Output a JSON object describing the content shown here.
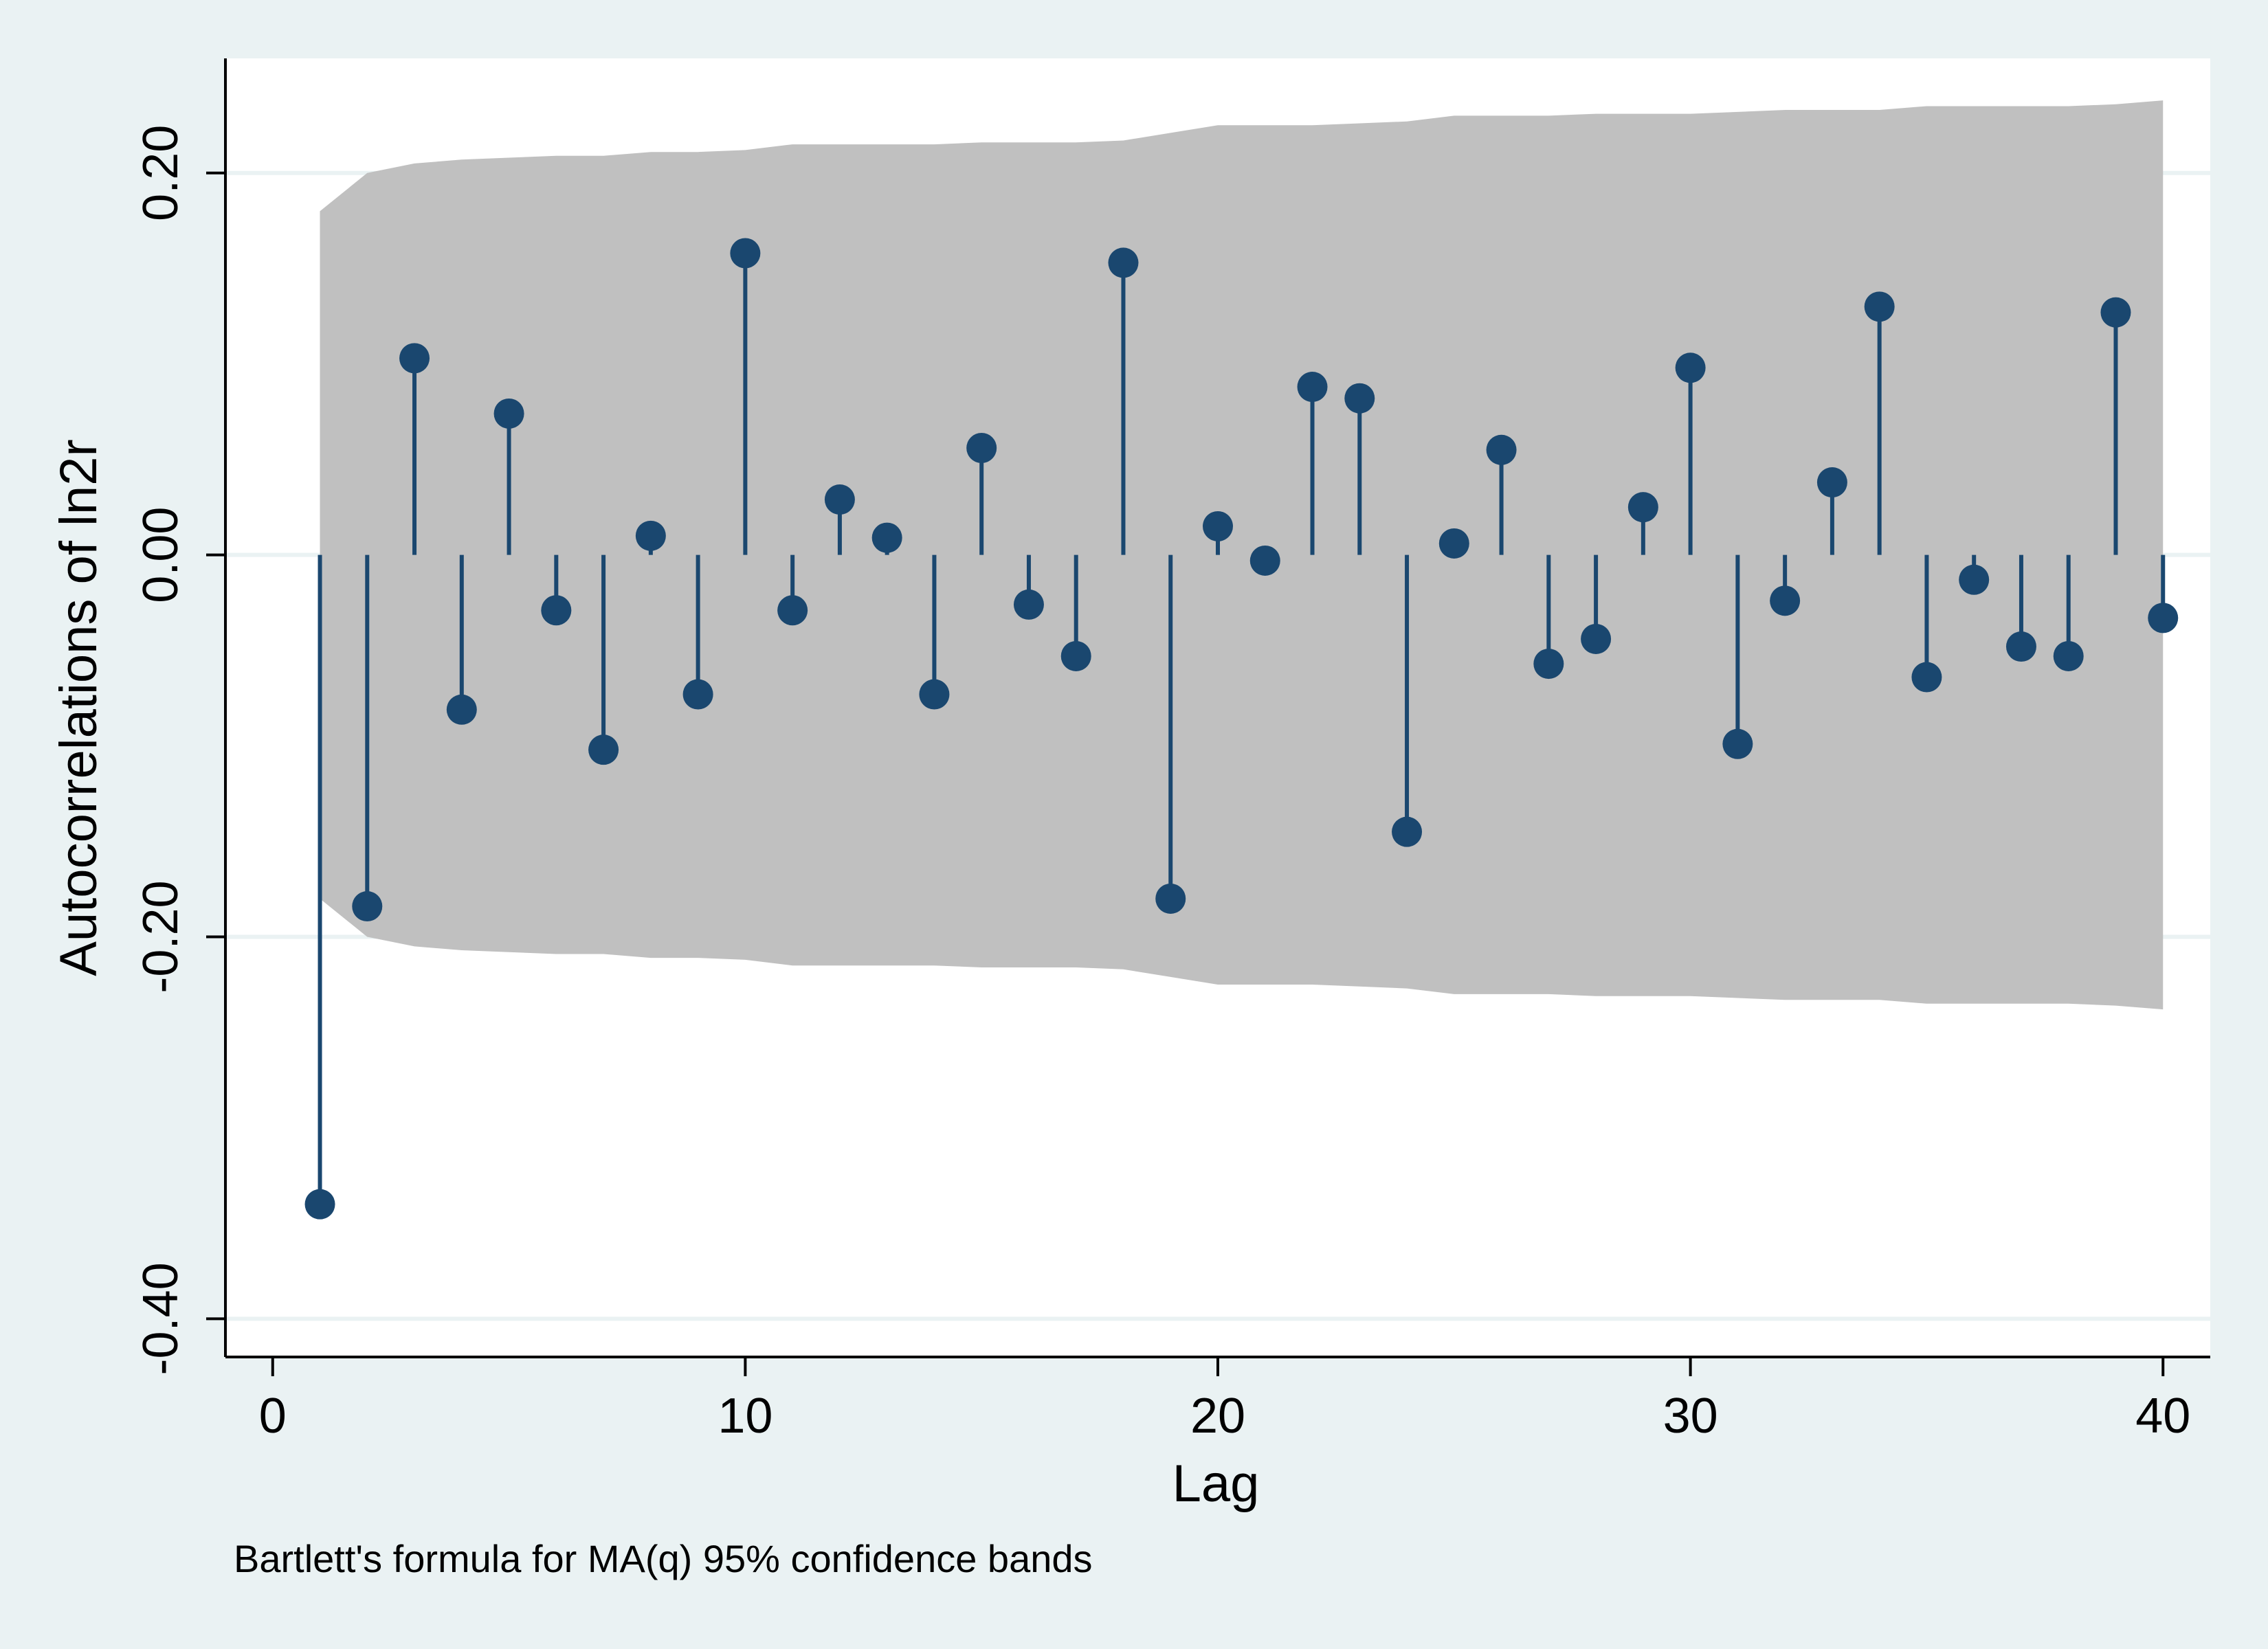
{
  "chart_data": {
    "type": "scatter",
    "title": "",
    "xlabel": "Lag",
    "ylabel": "Autocorrelations of ln2r",
    "note": "Bartlett's formula for MA(q) 95% confidence bands",
    "xlim": [
      -1,
      41
    ],
    "ylim": [
      -0.42,
      0.26
    ],
    "xticks": [
      0,
      10,
      20,
      30,
      40
    ],
    "xtick_labels": [
      "0",
      "10",
      "20",
      "30",
      "40"
    ],
    "yticks": [
      -0.4,
      -0.2,
      0.0,
      0.2
    ],
    "ytick_labels": [
      "-0.40",
      "-0.20",
      "0.00",
      "0.20"
    ],
    "grid": true,
    "legend": "none",
    "colors": {
      "marker": "#1a476f",
      "band": "#c0c0c0",
      "plot_bg": "#ffffff",
      "outer_bg": "#eaf2f3",
      "grid": "#eaf2f3"
    },
    "series": [
      {
        "style": "spike",
        "x": [
          1,
          2,
          3,
          4,
          5,
          6,
          7,
          8,
          9,
          10,
          11,
          12,
          13,
          14,
          15,
          16,
          17,
          18,
          19,
          20,
          21,
          22,
          23,
          24,
          25,
          26,
          27,
          28,
          29,
          30,
          31,
          32,
          33,
          34,
          35,
          36,
          37,
          38,
          39,
          40
        ],
        "values": [
          -0.34,
          -0.184,
          0.103,
          -0.081,
          0.074,
          -0.029,
          -0.102,
          0.01,
          -0.073,
          0.158,
          -0.029,
          0.029,
          0.009,
          -0.073,
          0.056,
          -0.026,
          -0.053,
          0.153,
          -0.18,
          0.015,
          -0.003,
          0.088,
          0.082,
          -0.145,
          0.006,
          0.055,
          -0.057,
          -0.044,
          0.025,
          0.098,
          -0.099,
          -0.024,
          0.038,
          0.13,
          -0.064,
          -0.013,
          -0.048,
          -0.053,
          0.127,
          -0.033
        ]
      }
    ],
    "confidence_band": {
      "x": [
        1,
        2,
        3,
        4,
        5,
        6,
        7,
        8,
        9,
        10,
        11,
        12,
        13,
        14,
        15,
        16,
        17,
        18,
        19,
        20,
        21,
        22,
        23,
        24,
        25,
        26,
        27,
        28,
        29,
        30,
        31,
        32,
        33,
        34,
        35,
        36,
        37,
        38,
        39,
        40
      ],
      "upper": [
        0.18,
        0.2,
        0.205,
        0.207,
        0.208,
        0.209,
        0.209,
        0.211,
        0.211,
        0.212,
        0.215,
        0.215,
        0.215,
        0.215,
        0.216,
        0.216,
        0.216,
        0.217,
        0.221,
        0.225,
        0.225,
        0.225,
        0.226,
        0.227,
        0.23,
        0.23,
        0.23,
        0.231,
        0.231,
        0.231,
        0.232,
        0.233,
        0.233,
        0.233,
        0.235,
        0.235,
        0.235,
        0.235,
        0.236,
        0.238
      ],
      "lower": [
        -0.18,
        -0.2,
        -0.205,
        -0.207,
        -0.208,
        -0.209,
        -0.209,
        -0.211,
        -0.211,
        -0.212,
        -0.215,
        -0.215,
        -0.215,
        -0.215,
        -0.216,
        -0.216,
        -0.216,
        -0.217,
        -0.221,
        -0.225,
        -0.225,
        -0.225,
        -0.226,
        -0.227,
        -0.23,
        -0.23,
        -0.23,
        -0.231,
        -0.231,
        -0.231,
        -0.232,
        -0.233,
        -0.233,
        -0.233,
        -0.235,
        -0.235,
        -0.235,
        -0.235,
        -0.236,
        -0.238
      ]
    }
  }
}
